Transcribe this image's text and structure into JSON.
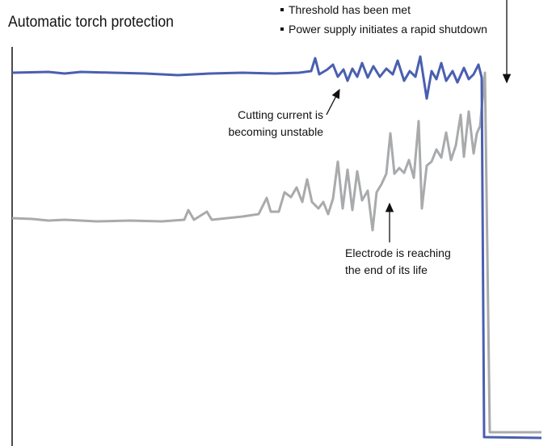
{
  "header": {
    "title": "Automatic torch protection"
  },
  "bullets": [
    "Threshold has been met",
    "Power supply initiates a rapid shutdown"
  ],
  "annotations": [
    {
      "lines": [
        "Cutting current is",
        "becoming unstable"
      ]
    },
    {
      "lines": [
        "Electrode is reaching",
        "the end of its life"
      ]
    }
  ]
}
